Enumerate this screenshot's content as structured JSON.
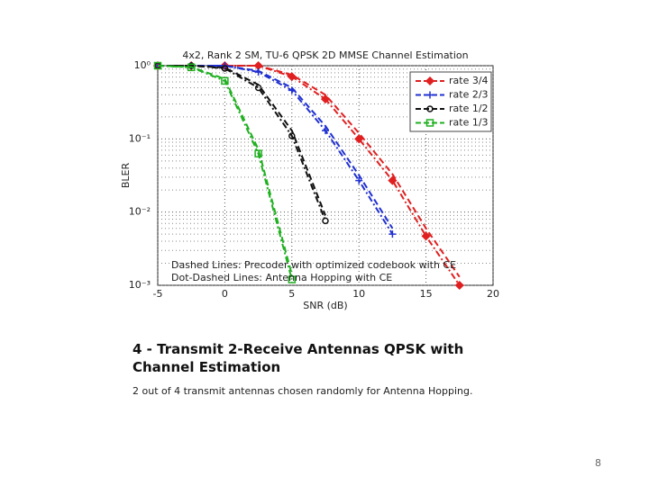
{
  "chart_data": {
    "type": "line",
    "title": "4x2, Rank 2 SM, TU-6 QPSK 2D MMSE Channel Estimation",
    "xlabel": "SNR (dB)",
    "ylabel": "BLER",
    "x": [
      -5,
      -2.5,
      0,
      2.5,
      5,
      7.5,
      10,
      12.5,
      15,
      17.5
    ],
    "series": [
      {
        "name": "rate 3/4",
        "color": "#e02020",
        "marker": "diamond",
        "values": [
          1,
          1,
          1,
          1,
          0.71,
          0.35,
          0.1,
          0.027,
          0.0047,
          0.001
        ],
        "dashed_values": [
          1,
          1,
          1,
          1,
          0.75,
          0.4,
          0.12,
          0.033,
          0.006,
          0.0013
        ]
      },
      {
        "name": "rate 2/3",
        "color": "#2030d0",
        "marker": "plus",
        "values": [
          1,
          1,
          1,
          0.82,
          0.46,
          0.13,
          0.027,
          0.005,
          null,
          null
        ],
        "dashed_values": [
          1,
          1,
          1,
          0.85,
          0.5,
          0.15,
          0.032,
          0.006,
          null,
          null
        ]
      },
      {
        "name": "rate 1/2",
        "color": "#111111",
        "marker": "circle",
        "values": [
          1,
          1,
          0.92,
          0.5,
          0.11,
          0.0076,
          null,
          null,
          null,
          null
        ],
        "dashed_values": [
          1,
          1,
          0.94,
          0.55,
          0.13,
          0.009,
          null,
          null,
          null,
          null
        ]
      },
      {
        "name": "rate 1/3",
        "color": "#20b020",
        "marker": "square",
        "values": [
          1,
          0.95,
          0.62,
          0.063,
          0.0012,
          null,
          null,
          null,
          null,
          null
        ],
        "dashed_values": [
          1,
          0.96,
          0.66,
          0.072,
          0.0014,
          null,
          null,
          null,
          null,
          null
        ]
      }
    ],
    "xlim": [
      -5,
      20
    ],
    "xticks": [
      -5,
      0,
      5,
      10,
      15,
      20
    ],
    "ylim": [
      0.001,
      1
    ],
    "log_y": true,
    "yticks": [
      {
        "value": 1,
        "label": "10⁰"
      },
      {
        "value": 0.1,
        "label": "10⁻¹"
      },
      {
        "value": 0.01,
        "label": "10⁻²"
      },
      {
        "value": 0.001,
        "label": "10⁻³"
      }
    ],
    "grid": true,
    "legend": "upper right",
    "annotations": [
      "Dashed Lines: Precoder with optimized codebook with CE",
      "Dot-Dashed Lines: Antenna Hopping with CE"
    ]
  },
  "caption": {
    "heading": "4 - Transmit 2-Receive Antennas QPSK with Channel Estimation",
    "note": "2 out of 4 transmit antennas chosen randomly for Antenna Hopping.",
    "page": "8"
  }
}
